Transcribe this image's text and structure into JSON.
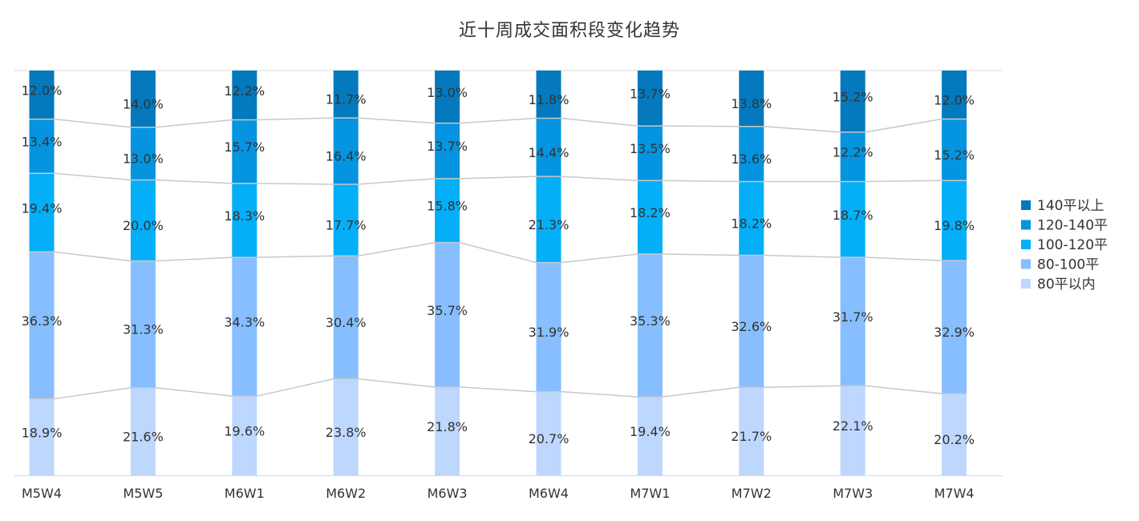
{
  "chart_data": {
    "type": "bar",
    "stacked": true,
    "percent_stacked": true,
    "title": "近十周成交面积段变化趋势",
    "categories": [
      "M5W4",
      "M5W5",
      "M6W1",
      "M6W2",
      "M6W3",
      "M6W4",
      "M7W1",
      "M7W2",
      "M7W3",
      "M7W4"
    ],
    "series": [
      {
        "name": "80平以内",
        "color": "#BDD7FF",
        "values": [
          18.9,
          21.6,
          19.6,
          23.8,
          21.8,
          20.7,
          19.4,
          21.7,
          22.1,
          20.2
        ],
        "labels": [
          "18.9%",
          "21.6%",
          "19.6%",
          "23.8%",
          "21.8%",
          "20.7%",
          "19.4%",
          "21.7%",
          "22.1%",
          "20.2%"
        ]
      },
      {
        "name": "80-100平",
        "color": "#86BEFF",
        "values": [
          36.3,
          31.3,
          34.3,
          30.4,
          35.7,
          31.9,
          35.3,
          32.6,
          31.7,
          32.9
        ],
        "labels": [
          "36.3%",
          "31.3%",
          "34.3%",
          "30.4%",
          "35.7%",
          "31.9%",
          "35.3%",
          "32.6%",
          "31.7%",
          "32.9%"
        ]
      },
      {
        "name": "100-120平",
        "color": "#04AFF8",
        "values": [
          19.4,
          20.0,
          18.3,
          17.7,
          15.8,
          21.3,
          18.2,
          18.2,
          18.7,
          19.8
        ],
        "labels": [
          "19.4%",
          "20.0%",
          "18.3%",
          "17.7%",
          "15.8%",
          "21.3%",
          "18.2%",
          "18.2%",
          "18.7%",
          "19.8%"
        ]
      },
      {
        "name": "120-140平",
        "color": "#0494E0",
        "values": [
          13.4,
          13.0,
          15.7,
          16.4,
          13.7,
          14.4,
          13.5,
          13.6,
          12.2,
          15.2
        ],
        "labels": [
          "13.4%",
          "13.0%",
          "15.7%",
          "16.4%",
          "13.7%",
          "14.4%",
          "13.5%",
          "13.6%",
          "12.2%",
          "15.2%"
        ]
      },
      {
        "name": "140平以上",
        "color": "#0479BD",
        "values": [
          12.0,
          14.0,
          12.2,
          11.7,
          13.0,
          11.8,
          13.7,
          13.8,
          15.2,
          12.0
        ],
        "labels": [
          "12.0%",
          "14.0%",
          "12.2%",
          "11.7%",
          "13.0%",
          "11.8%",
          "13.7%",
          "13.8%",
          "15.2%",
          "12.0%"
        ]
      }
    ],
    "legend_order": [
      "140平以上",
      "120-140平",
      "100-120平",
      "80-100平",
      "80平以内"
    ],
    "ylim": [
      0,
      100
    ],
    "legend_position": "right",
    "series_lines": true,
    "line_color": "#C8C8C8",
    "axis_color": "#D9D9D9",
    "text_color": "#333333"
  }
}
